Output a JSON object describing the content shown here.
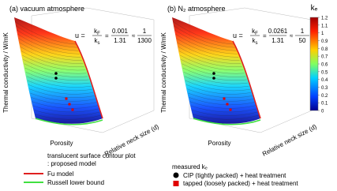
{
  "panels": [
    {
      "title": "(a) vacuum atmosphere",
      "eq": {
        "lhs": "u =",
        "k1": "k",
        "k1sub": "F",
        "k2": "k",
        "k2sub": "s",
        "eq1": "=",
        "num": "0.001",
        "den": "1.31",
        "approx": "≈",
        "num2": "1",
        "den2": "1300"
      },
      "ylabel": "Thermal conductivity / W/mK",
      "xlabel": "Porosity",
      "zlabel": "Relative neck size (d)"
    },
    {
      "title": "(b) N₂ atmosphere",
      "eq": {
        "lhs": "u =",
        "k1": "k",
        "k1sub": "F",
        "k2": "k",
        "k2sub": "s",
        "eq1": "=",
        "num": "0.0261",
        "den": "1.31",
        "approx": "≈",
        "num2": "1",
        "den2": "50"
      },
      "ylabel": "Thermal conductivity / W/mK",
      "xlabel": "Porosity",
      "zlabel": "Relative neck size (d)"
    }
  ],
  "colorbar": {
    "label": "kₑ",
    "ticks": [
      "1.2",
      "1.1",
      "1",
      "0.9",
      "0.8",
      "0.7",
      "0.6",
      "0.5",
      "0.4",
      "0.3",
      "0.2",
      "0.1",
      "0"
    ]
  },
  "legend": {
    "surface": "translucent surface contour plot",
    "surface2": ": proposed model",
    "fu": "Fu model",
    "russell": "Russell lower bound",
    "measured": "measured kₑ",
    "cip": "CIP (tightly packed) + heat treatment",
    "tapped": "tapped (loosely packed) + heat treatment"
  }
}
